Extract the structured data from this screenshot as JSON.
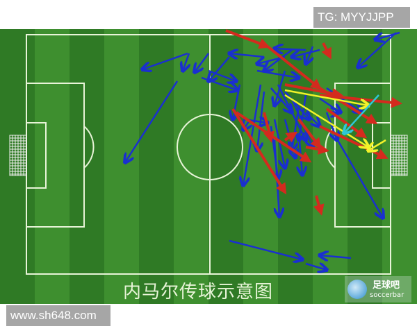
{
  "watermarks": {
    "top_right": "TG: MYYJJPP",
    "bottom_left": "www.sh648.com"
  },
  "title": "内马尔传球示意图",
  "logo": {
    "cn": "足球吧",
    "en": "soccerbar"
  },
  "colors": {
    "pitch_dark": "#2f7a25",
    "pitch_light": "#3e8f2f",
    "lines": "#e8f4d8",
    "pass_blue": "#1a2fd0",
    "pass_red": "#d42a1e",
    "pass_yellow": "#f2f22a",
    "pass_cyan": "#2ec8d8"
  }
}
